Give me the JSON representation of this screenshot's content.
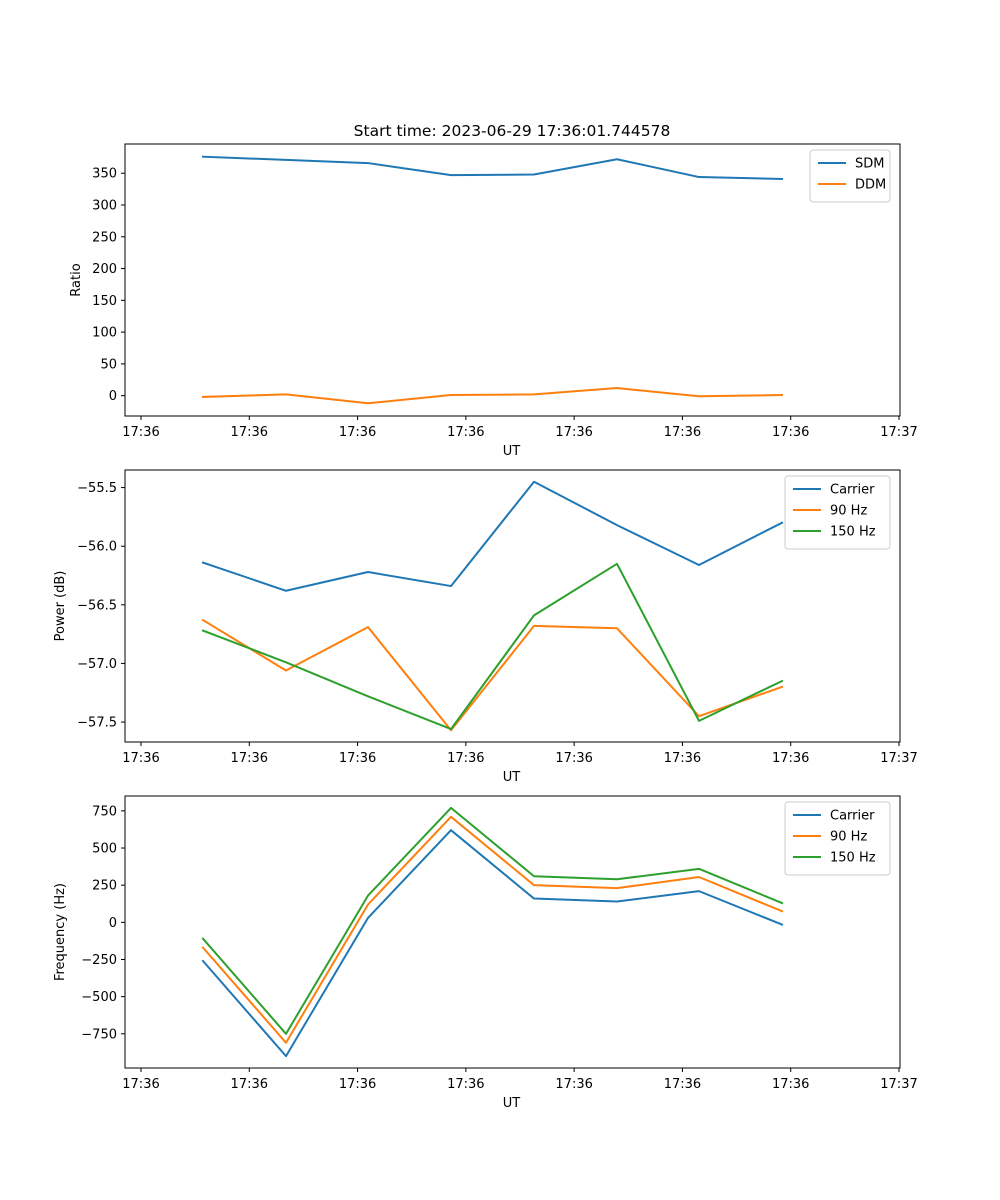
{
  "figure_title": "Start time: 2023-06-29 17:36:01.744578",
  "chart_data": [
    {
      "type": "line",
      "xlabel": "UT",
      "ylabel": "Ratio",
      "x_tick_labels": [
        "17:36",
        "17:36",
        "17:36",
        "17:36",
        "17:36",
        "17:36",
        "17:36",
        "17:37"
      ],
      "y_ticks": [
        0,
        50,
        100,
        150,
        200,
        250,
        300,
        350
      ],
      "ylim": [
        -32,
        396
      ],
      "legend_position": "upper right",
      "grid": false,
      "series": [
        {
          "name": "SDM",
          "color": "#1f77b4",
          "values": [
            376,
            371,
            366,
            347,
            348,
            372,
            344,
            341
          ]
        },
        {
          "name": "DDM",
          "color": "#ff7f0e",
          "values": [
            -2,
            2,
            -12,
            1,
            2,
            12,
            -1,
            1
          ]
        }
      ]
    },
    {
      "type": "line",
      "xlabel": "UT",
      "ylabel": "Power (dB)",
      "x_tick_labels": [
        "17:36",
        "17:36",
        "17:36",
        "17:36",
        "17:36",
        "17:36",
        "17:36",
        "17:37"
      ],
      "y_ticks": [
        -57.5,
        -57.0,
        -56.5,
        -56.0,
        -55.5
      ],
      "y_tick_labels": [
        "−57.5",
        "−57.0",
        "−56.5",
        "−56.0",
        "−55.5"
      ],
      "ylim": [
        -57.67,
        -55.35
      ],
      "legend_position": "upper right",
      "grid": false,
      "series": [
        {
          "name": "Carrier",
          "color": "#1f77b4",
          "values": [
            -56.14,
            -56.38,
            -56.22,
            -56.34,
            -55.45,
            -55.82,
            -56.16,
            -55.8
          ]
        },
        {
          "name": "90 Hz",
          "color": "#ff7f0e",
          "values": [
            -56.63,
            -57.06,
            -56.69,
            -57.57,
            -56.68,
            -56.7,
            -57.45,
            -57.2
          ]
        },
        {
          "name": "150 Hz",
          "color": "#2ca02c",
          "values": [
            -56.72,
            -56.99,
            -57.28,
            -57.56,
            -56.59,
            -56.15,
            -57.49,
            -57.15
          ]
        }
      ]
    },
    {
      "type": "line",
      "xlabel": "UT",
      "ylabel": "Frequency (Hz)",
      "x_tick_labels": [
        "17:36",
        "17:36",
        "17:36",
        "17:36",
        "17:36",
        "17:36",
        "17:36",
        "17:37"
      ],
      "y_ticks": [
        -750,
        -500,
        -250,
        0,
        250,
        500,
        750
      ],
      "y_tick_labels": [
        "−750",
        "−500",
        "−250",
        "0",
        "250",
        "500",
        "750"
      ],
      "ylim": [
        -980,
        850
      ],
      "legend_position": "upper right",
      "grid": false,
      "series": [
        {
          "name": "Carrier",
          "color": "#1f77b4",
          "values": [
            -260,
            -900,
            30,
            620,
            160,
            140,
            210,
            -15
          ]
        },
        {
          "name": "90 Hz",
          "color": "#ff7f0e",
          "values": [
            -170,
            -810,
            120,
            710,
            250,
            230,
            305,
            75
          ]
        },
        {
          "name": "150 Hz",
          "color": "#2ca02c",
          "values": [
            -110,
            -750,
            180,
            770,
            310,
            290,
            360,
            130
          ]
        }
      ]
    }
  ]
}
